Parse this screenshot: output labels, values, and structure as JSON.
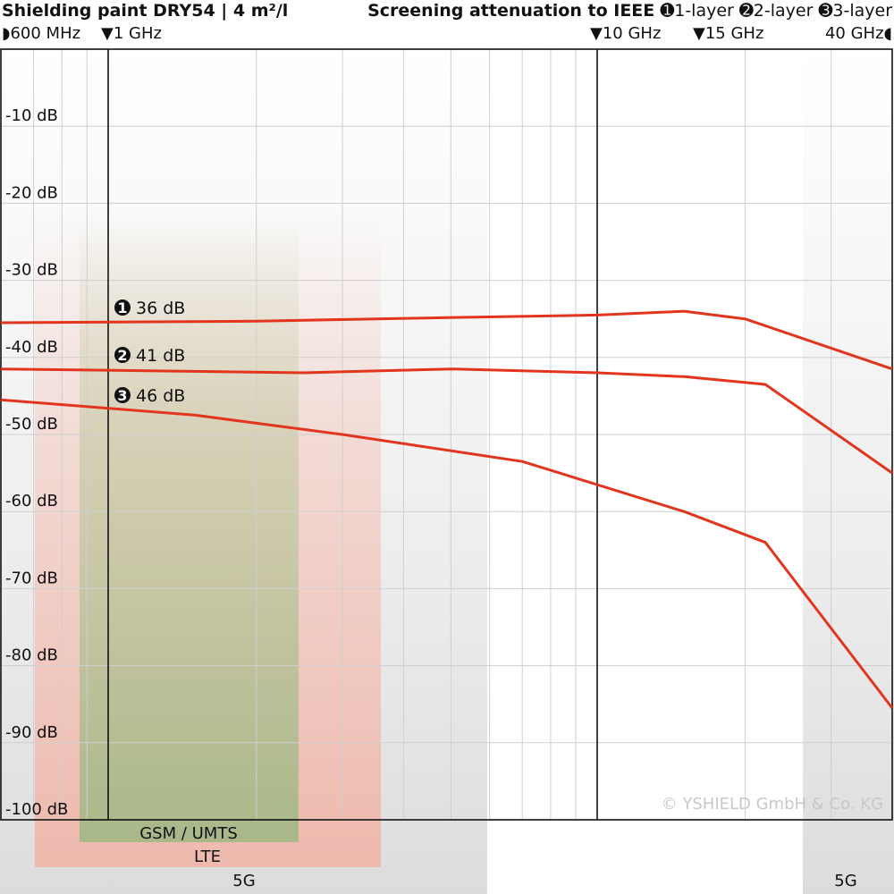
{
  "header": {
    "title": "Shielding paint DRY54 | 4 m²/l",
    "legend_prefix": "Screening attenuation to IEEE",
    "legend_items": [
      "➊1-layer",
      "➋2-layer",
      "➌3-layer"
    ]
  },
  "markers": {
    "m600": "◗600 MHz",
    "m1": "▼1 GHz",
    "m10": "▼10 GHz",
    "m15": "▼15 GHz",
    "m40": "40 GHz◖"
  },
  "bands": {
    "gsm": "GSM / UMTS",
    "lte": "LTE",
    "fiveg_left": "5G",
    "fiveg_right": "5G"
  },
  "copyright": "© YSHIELD GmbH & Co. KG",
  "chart_data": {
    "type": "line",
    "title": "Shielding paint DRY54 | 4 m²/l",
    "xscale": "log",
    "xlim_hz": [
      600000000,
      40000000000
    ],
    "ylim": [
      -100,
      0
    ],
    "yticks": [
      "-10 dB",
      "-20 dB",
      "-30 dB",
      "-40 dB",
      "-50 dB",
      "-60 dB",
      "-70 dB",
      "-80 dB",
      "-90 dB",
      "-100 dB"
    ],
    "grid": true,
    "series": [
      {
        "name": "1-layer",
        "label": "36 dB",
        "badge": "➊",
        "color": "#e1351e",
        "x_ghz": [
          0.6,
          2,
          3.5,
          10,
          15,
          20,
          40
        ],
        "y": [
          -35.5,
          -35.3,
          -35.0,
          -34.5,
          -34.0,
          -35.0,
          -41.5
        ]
      },
      {
        "name": "2-layer",
        "label": "41 dB",
        "badge": "➋",
        "color": "#e1351e",
        "x_ghz": [
          0.6,
          2.5,
          5,
          10,
          15,
          22,
          40
        ],
        "y": [
          -41.5,
          -42.0,
          -41.5,
          -42.0,
          -42.5,
          -43.5,
          -55.0
        ]
      },
      {
        "name": "3-layer",
        "label": "46 dB",
        "badge": "➌",
        "color": "#e1351e",
        "x_ghz": [
          0.6,
          1.5,
          3,
          7,
          15,
          22,
          40
        ],
        "y": [
          -45.5,
          -47.5,
          -50.0,
          -53.5,
          -60.0,
          -64.0,
          -85.5
        ]
      }
    ]
  }
}
